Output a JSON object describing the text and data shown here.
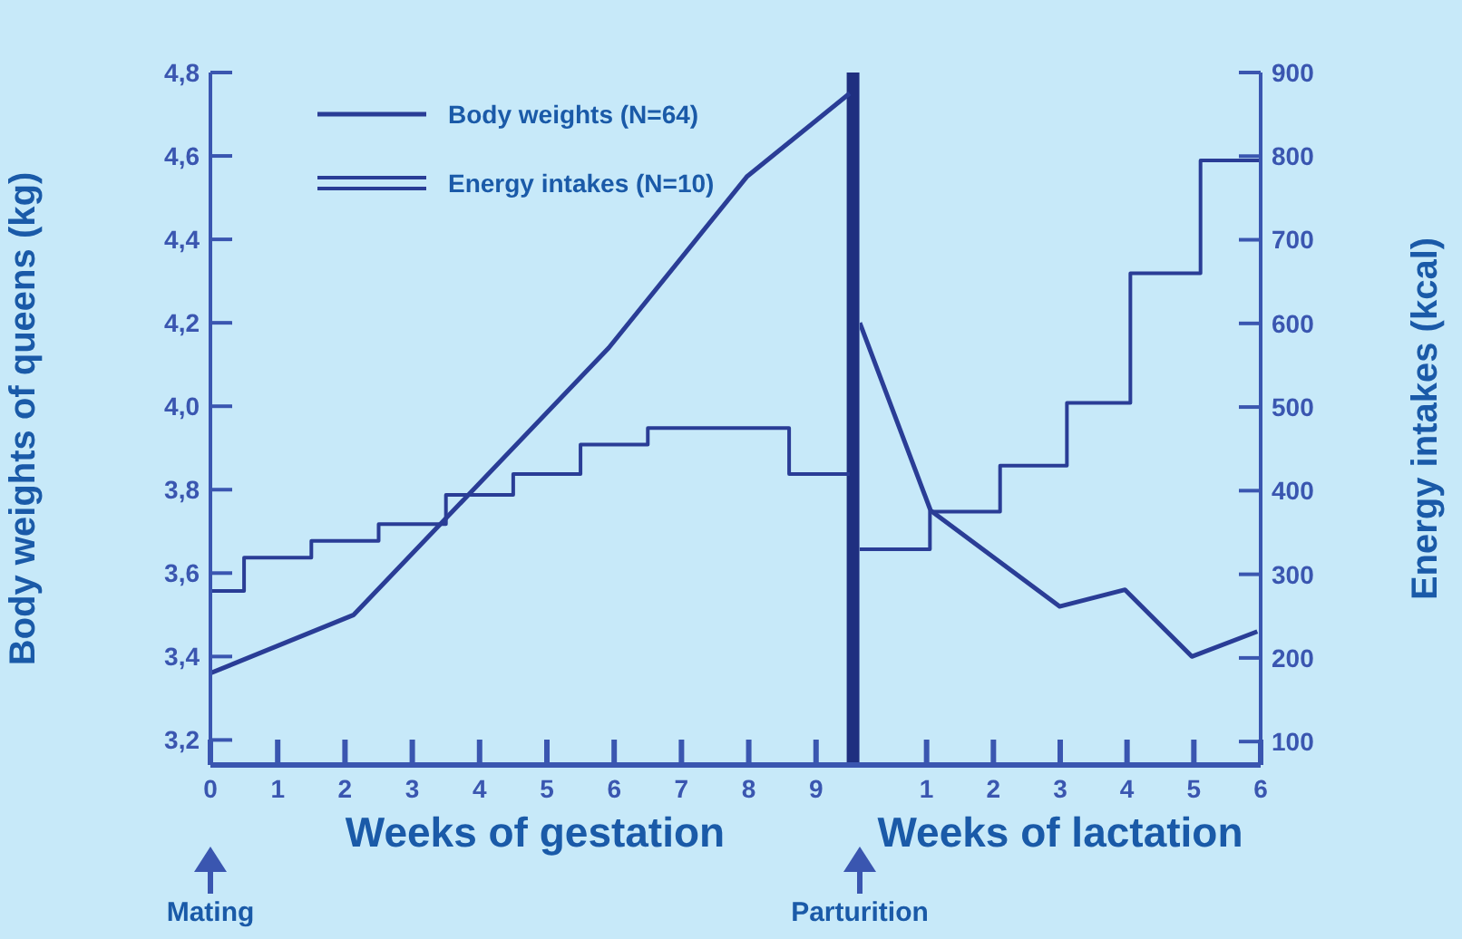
{
  "chart_data": [
    {
      "type": "line",
      "xlabel": "Weeks of gestation",
      "ylabel": "Body weights of queens (kg)",
      "xlim": [
        0,
        9.65
      ],
      "xticks": [
        0,
        1,
        2,
        3,
        4,
        5,
        6,
        7,
        8,
        9
      ],
      "ylim": [
        3.14,
        4.8
      ],
      "yticks": [
        {
          "value": 3.2,
          "label": "3,2"
        },
        {
          "value": 3.4,
          "label": "3,4"
        },
        {
          "value": 3.6,
          "label": "3,6"
        },
        {
          "value": 3.8,
          "label": "3,8"
        },
        {
          "value": 4.0,
          "label": "4,0"
        },
        {
          "value": 4.2,
          "label": "4,2"
        },
        {
          "value": 4.4,
          "label": "4,4"
        },
        {
          "value": 4.6,
          "label": "4,6"
        },
        {
          "value": 4.8,
          "label": "4,8"
        }
      ],
      "y2lim": [
        72,
        900
      ],
      "series": [
        {
          "name": "Body weights (N=64)",
          "color": "#2a3d96",
          "x": [
            0,
            2.13,
            5.92,
            7.97,
            9.5
          ],
          "values": [
            3.36,
            3.5,
            4.14,
            4.55,
            4.75
          ]
        },
        {
          "name": "Energy intakes (N=10)",
          "type": "step",
          "axis": "y2",
          "color": "#2a3d96",
          "x": [
            0,
            0.5,
            1.5,
            2.5,
            3.5,
            4.5,
            5.5,
            6.5,
            8.6,
            9.5
          ],
          "values": [
            280,
            320,
            340,
            360,
            395,
            420,
            455,
            475,
            420,
            420
          ]
        }
      ],
      "ref_lines": [
        {
          "axis": "x",
          "value": 9.55,
          "color": "#1f2f80"
        }
      ],
      "annotations": [
        "Mating"
      ],
      "legend": "top",
      "marker": "none"
    },
    {
      "type": "line",
      "xlabel": "Weeks of lactation",
      "y2label": "Energy intakes (kcal)",
      "xlim": [
        0,
        6
      ],
      "xticks": [
        1,
        2,
        3,
        4,
        5,
        6
      ],
      "ylim": [
        3.14,
        4.8
      ],
      "y2lim": [
        72,
        900
      ],
      "y2ticks": [
        100,
        200,
        300,
        400,
        500,
        600,
        700,
        800,
        900
      ],
      "series": [
        {
          "color": "#2a3d96",
          "x": [
            0,
            1.06,
            2.99,
            3.97,
            4.97,
            5.95
          ],
          "values": [
            4.2,
            3.75,
            3.52,
            3.56,
            3.4,
            3.46
          ]
        },
        {
          "type": "step",
          "axis": "y2",
          "color": "#2a3d96",
          "x": [
            0,
            1.05,
            2.1,
            3.1,
            4.05,
            5.1,
            6
          ],
          "values": [
            330,
            375,
            430,
            505,
            660,
            795,
            795
          ]
        }
      ],
      "annotations": [
        "Parturition"
      ],
      "marker": "none"
    }
  ]
}
